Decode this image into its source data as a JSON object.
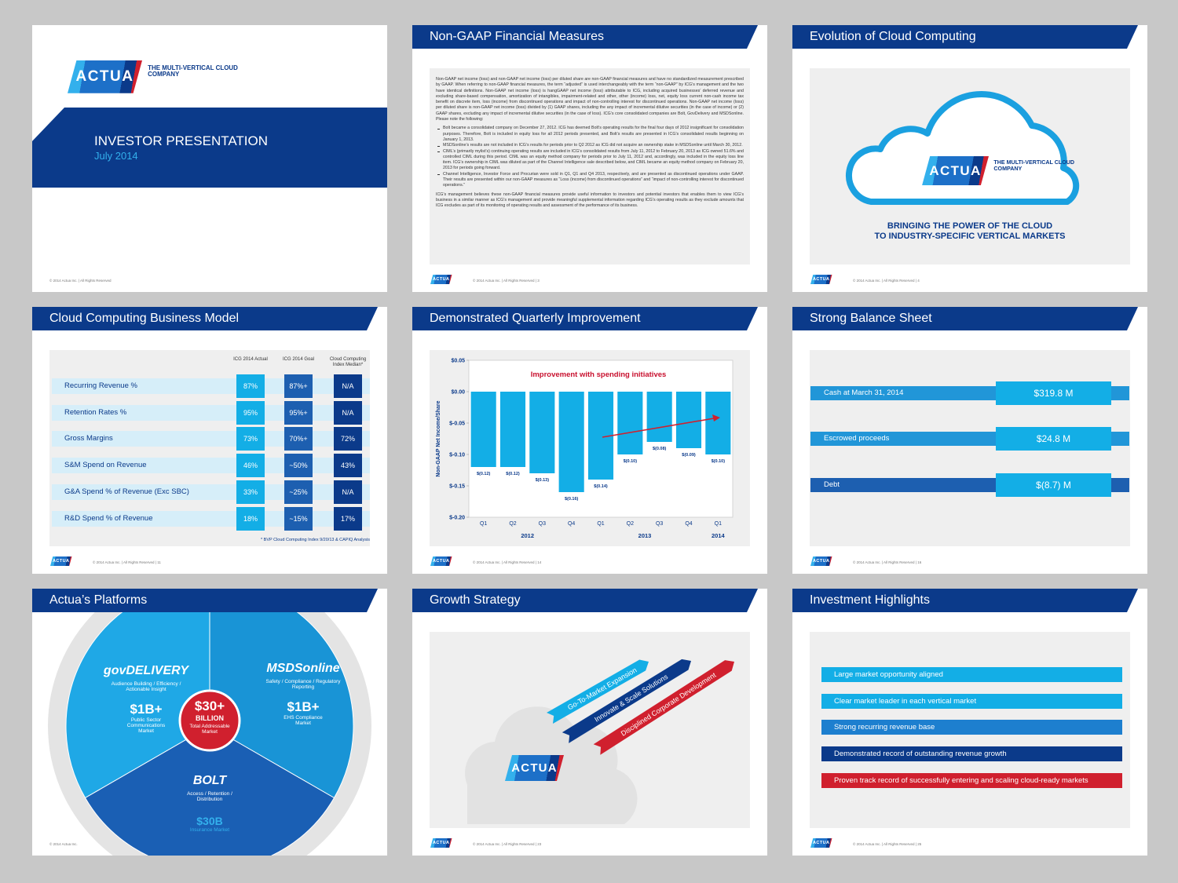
{
  "logo": {
    "name": "ACTUA",
    "tagline": "THE MULTI-VERTICAL CLOUD COMPANY"
  },
  "cover": {
    "title": "INVESTOR PRESENTATION",
    "date": "July 2014",
    "footer": "© 2014 Actua Inc. | All Rights Reserved"
  },
  "non_gaap": {
    "title": "Non-GAAP Financial Measures",
    "intro": "Non-GAAP net income (loss) and non-GAAP net income (loss) per diluted share are non-GAAP financial measures and have no standardized measurement prescribed by GAAP. When referring to non-GAAP financial measures, the term “adjusted” is used interchangeably with the term “non-GAAP” by ICG’s management and the two have identical definitions. Non-GAAP net income (loss) is hangGAAP net income (loss) attributable to ICG, including acquired businesses’ deferred revenue and excluding share-based compensation, amortization of intangibles, impairment-related and other, other (income) loss, net, equity loss current non-cash income tax benefit on discrete item, loss (income) from discontinued operations and impact of non-controlling interest for discontinued operations. Non-GAAP net income (loss) per diluted share is non-GAAP net income (loss) divided by (1) GAAP shares, including the any impact of incremental dilutive securities (in the case of income) or (2) GAAP shares, excluding any impact of incremental dilutive securities (in the case of loss). ICG’s core consolidated companies are Bolt, GovDelivery and MSDSonline. Please note the following:",
    "bullets": [
      "Bolt became a consolidated company on December 27, 2012. ICG has deemed Bolt’s operating results for the final four days of 2012 insignificant for consolidation purposes. Therefore, Bolt is included in equity loss for all 2012 periods presented, and Bolt’s results are presented in ICG’s consolidated results beginning on January 1, 2013.",
      "MSDSonline’s results are not included in ICG’s results for periods prior to Q2 2012 as ICG did not acquire an ownership stake in MSDSonline until March 30, 2012.",
      "CIML’s (primarily mylist’s) continuing operating results are included in ICG’s consolidated results from July 11, 2012 to February 20, 2013 as ICG owned 51.6% and controlled CIML during this period. CIML was an equity method company for periods prior to July 11, 2012 and, accordingly, was included in the equity loss line item. ICG’s ownership in CIML was diluted as part of the Channel Intelligence sale described below, and CIML became an equity method company on February 20, 2013 for periods going forward.",
      "Channel Intelligence, Investor Force and Procurian were sold in Q1, Q1 and Q4 2013, respectively, and are presented as discontinued operations under GAAP. Their results are presented within our non-GAAP measures as “Loss (income) from discontinued operations” and “impact of non-controlling interest for discontinued operations.”"
    ],
    "closing": "ICG’s management believes these non-GAAP financial measures provide useful information to investors and potential investors that enables them to view ICG’s business in a similar manner as ICG’s management and provide meaningful supplemental information regarding ICG’s operating results as they exclude amounts that ICG excludes as part of its monitoring of operating results and assessment of the performance of its business.",
    "footer": "© 2014 Actua Inc. | All Rights Reserved | 3"
  },
  "cloud": {
    "title": "Evolution of Cloud Computing",
    "tagline": [
      "BRINGING THE POWER OF THE CLOUD",
      "TO INDUSTRY-SPECIFIC VERTICAL MARKETS"
    ],
    "footer": "© 2014 Actua Inc. | All Rights Reserved | 4"
  },
  "business_model": {
    "title": "Cloud Computing Business Model",
    "columns": [
      "ICG 2014 Actual",
      "ICG 2014 Goal",
      "Cloud Computing Index Median*"
    ],
    "rows": [
      [
        "Recurring Revenue %",
        "87%",
        "87%+",
        "N/A"
      ],
      [
        "Retention Rates %",
        "95%",
        "95%+",
        "N/A"
      ],
      [
        "Gross Margins",
        "73%",
        "70%+",
        "72%"
      ],
      [
        "S&M Spend on Revenue",
        "46%",
        "~50%",
        "43%"
      ],
      [
        "G&A Spend % of Revenue (Exc SBC)",
        "33%",
        "~25%",
        "N/A"
      ],
      [
        "R&D Spend % of Revenue",
        "18%",
        "~15%",
        "17%"
      ]
    ],
    "note": "* BVP Cloud Computing Index 9/20/13 & CAPIQ Analysis",
    "footer": "© 2014 Actua Inc. | All Rights Reserved | 11"
  },
  "chart_data": {
    "type": "bar",
    "title": "Demonstrated Quarterly Improvement",
    "annotation": "Improvement with spending initiatives",
    "ylabel": "Non-GAAP Net Income/Share",
    "groups": [
      {
        "label": "2012",
        "categories": [
          "Q1",
          "Q2",
          "Q3",
          "Q4"
        ]
      },
      {
        "label": "2013",
        "categories": [
          "Q1",
          "Q2",
          "Q3",
          "Q4"
        ]
      },
      {
        "label": "2014",
        "categories": [
          "Q1"
        ]
      }
    ],
    "values": [
      -0.12,
      -0.12,
      -0.13,
      -0.16,
      -0.14,
      -0.1,
      -0.08,
      -0.09,
      -0.1
    ],
    "value_labels": [
      "$(0.12)",
      "$(0.12)",
      "$(0.13)",
      "$(0.16)",
      "$(0.14)",
      "$(0.10)",
      "$(0.08)",
      "$(0.09)",
      "$(0.10)"
    ],
    "color": "#13aee6",
    "ylim": [
      -0.2,
      0.05
    ],
    "yticks": [
      {
        "value": 0.05,
        "label": "$0.05"
      },
      {
        "value": 0,
        "label": "$0.00"
      },
      {
        "value": -0.05,
        "label": "$-0.05"
      },
      {
        "value": -0.1,
        "label": "$-0.10"
      },
      {
        "value": -0.15,
        "label": "$-0.15"
      },
      {
        "value": -0.2,
        "label": "$-0.20"
      }
    ],
    "footer": "© 2014 Actua Inc. | All Rights Reserved | 14"
  },
  "balance": {
    "title": "Strong Balance Sheet",
    "rows": [
      {
        "label": "Cash at March 31, 2014",
        "value": "$319.8 M"
      },
      {
        "label": "Escrowed proceeds",
        "value": "$24.8 M"
      },
      {
        "label": "Debt",
        "value": "$(8.7) M"
      }
    ],
    "footer": "© 2014 Actua Inc. | All Rights Reserved | 16"
  },
  "platforms": {
    "title": "Actua’s Platforms",
    "segments": [
      {
        "name": "govDELIVERY",
        "description": "Audience Building / Efficiency / Actionable Insight",
        "size": "$1B+",
        "market": "Public Sector Communications Market"
      },
      {
        "name": "MSDSonline",
        "description": "Safety / Compliance / Regulatory Reporting",
        "size": "$1B+",
        "market": "EHS Compliance Market"
      },
      {
        "name": "BOLT",
        "description": "Access / Retention / Distribution",
        "size": "$30B",
        "market": "Insurance Market"
      }
    ],
    "center": {
      "value": "$30+",
      "unit": "BILLION",
      "label": "Total Addressable Market"
    },
    "footer": "© 2014 Actua Inc."
  },
  "growth": {
    "title": "Growth Strategy",
    "arrows": [
      "Go-To-Market Expansion",
      "Innovate & Scale Solutions",
      "Disciplined Corporate Development"
    ],
    "footer": "© 2014 Actua Inc. | All Rights Reserved | 23"
  },
  "highlights": {
    "title": "Investment Highlights",
    "items": [
      "Large market opportunity aligned",
      "Clear market leader in each vertical market",
      "Strong recurring revenue base",
      "Demonstrated record of outstanding revenue growth",
      "Proven track record of successfully entering and scaling cloud-ready markets"
    ],
    "footer": "© 2014 Actua Inc. | All Rights Reserved | 25"
  }
}
